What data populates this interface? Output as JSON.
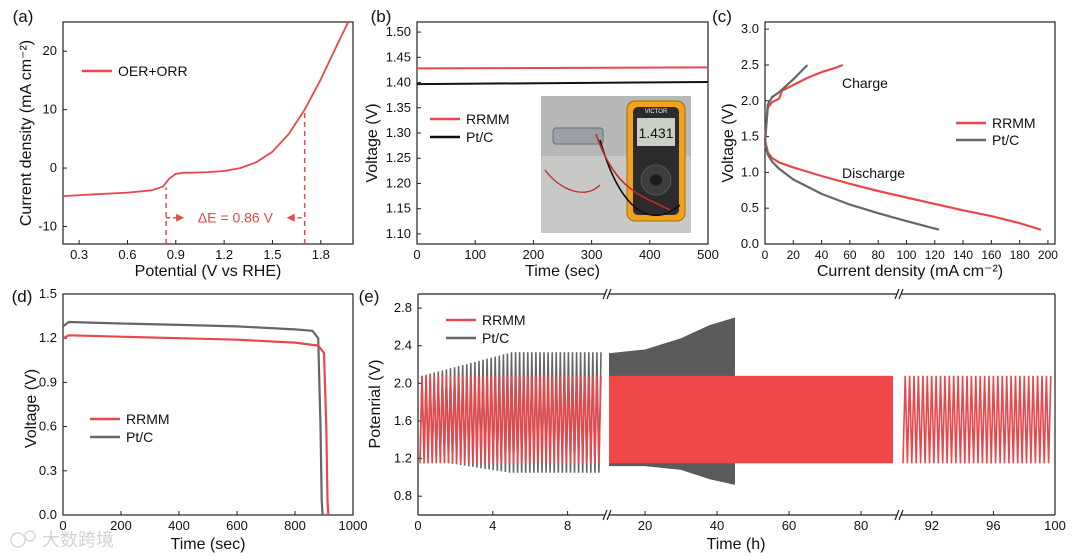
{
  "figure": {
    "watermark": "大数跨境"
  },
  "colors": {
    "red": "#e8474b",
    "black": "#111111",
    "gray": "#666666",
    "redfill": "#f04848",
    "grayfill": "#5a5a5a"
  },
  "chart_data": [
    {
      "id": "a",
      "panel_label": "(a)",
      "type": "line",
      "xlabel": "Potential (V vs RHE)",
      "ylabel": "Current density (mA cm⁻²)",
      "xlim": [
        0.2,
        2.0
      ],
      "ylim": [
        -13,
        25
      ],
      "xticks": [
        0.3,
        0.6,
        0.9,
        1.2,
        1.5,
        1.8
      ],
      "yticks": [
        -10,
        0,
        10,
        20
      ],
      "xtick_labels": [
        "0.3",
        "0.6",
        "0.9",
        "1.2",
        "1.5",
        "1.8"
      ],
      "ytick_labels": [
        "-10",
        "0",
        "10",
        "20"
      ],
      "legend": [
        "OER+ORR"
      ],
      "series": [
        {
          "name": "OER+ORR",
          "color": "#e8474b",
          "x": [
            0.2,
            0.4,
            0.6,
            0.75,
            0.82,
            0.86,
            0.9,
            0.95,
            1.0,
            1.1,
            1.2,
            1.3,
            1.4,
            1.5,
            1.6,
            1.7,
            1.8,
            1.9,
            1.97
          ],
          "y": [
            -4.8,
            -4.5,
            -4.2,
            -3.8,
            -3.2,
            -1.8,
            -1.0,
            -0.8,
            -0.8,
            -0.7,
            -0.5,
            0.0,
            1.0,
            2.8,
            5.8,
            10.0,
            15.2,
            21.0,
            25.0
          ]
        }
      ],
      "annotation": {
        "text": "ΔE = 0.86 V",
        "x1": 0.84,
        "x2": 1.7,
        "y": -8.5
      }
    },
    {
      "id": "b",
      "panel_label": "(b)",
      "type": "line",
      "xlabel": "Time (sec)",
      "ylabel": "Voltage (V)",
      "xlim": [
        0,
        500
      ],
      "ylim": [
        1.08,
        1.52
      ],
      "xticks": [
        0,
        100,
        200,
        300,
        400,
        500
      ],
      "yticks": [
        1.1,
        1.15,
        1.2,
        1.25,
        1.3,
        1.35,
        1.4,
        1.45,
        1.5
      ],
      "xtick_labels": [
        "0",
        "100",
        "200",
        "300",
        "400",
        "500"
      ],
      "ytick_labels": [
        "1.10",
        "1.15",
        "1.20",
        "1.25",
        "1.30",
        "1.35",
        "1.40",
        "1.45",
        "1.50"
      ],
      "legend": [
        "RRMM",
        "Pt/C"
      ],
      "series": [
        {
          "name": "RRMM",
          "color": "#e8474b",
          "x": [
            0,
            500
          ],
          "y": [
            1.428,
            1.43
          ]
        },
        {
          "name": "Pt/C",
          "color": "#111111",
          "x": [
            0,
            500
          ],
          "y": [
            1.397,
            1.401
          ]
        }
      ],
      "inset": {
        "meter_reading": "1.431",
        "brand": "VICTOR"
      }
    },
    {
      "id": "c",
      "panel_label": "(c)",
      "type": "line",
      "xlabel": "Current density (mA cm⁻²)",
      "ylabel": "Voltage (V)",
      "xlim": [
        0,
        205
      ],
      "ylim": [
        0.0,
        3.1
      ],
      "xticks": [
        0,
        20,
        40,
        60,
        80,
        100,
        120,
        140,
        160,
        180,
        200
      ],
      "yticks": [
        0.0,
        0.5,
        1.0,
        1.5,
        2.0,
        2.5,
        3.0
      ],
      "xtick_labels": [
        "0",
        "20",
        "40",
        "60",
        "80",
        "100",
        "120",
        "140",
        "160",
        "180",
        "200"
      ],
      "ytick_labels": [
        "0.0",
        "0.5",
        "1.0",
        "1.5",
        "2.0",
        "2.5",
        "3.0"
      ],
      "legend": [
        "RRMM",
        "Pt/C"
      ],
      "text_labels": [
        "Charge",
        "Discharge"
      ],
      "series": [
        {
          "name": "RRMM discharge",
          "color": "#e8474b",
          "x": [
            0,
            2,
            5,
            10,
            20,
            40,
            60,
            80,
            100,
            120,
            140,
            160,
            180,
            195
          ],
          "y": [
            1.45,
            1.28,
            1.2,
            1.14,
            1.07,
            0.95,
            0.84,
            0.74,
            0.65,
            0.56,
            0.47,
            0.39,
            0.29,
            0.2
          ]
        },
        {
          "name": "RRMM charge",
          "color": "#e8474b",
          "x": [
            0,
            2,
            5,
            10,
            12,
            20,
            30,
            40,
            50,
            55
          ],
          "y": [
            1.45,
            1.9,
            1.98,
            2.03,
            2.14,
            2.22,
            2.32,
            2.4,
            2.46,
            2.5
          ]
        },
        {
          "name": "Pt/C discharge",
          "color": "#666666",
          "x": [
            0,
            2,
            5,
            10,
            20,
            40,
            60,
            80,
            100,
            123
          ],
          "y": [
            1.4,
            1.25,
            1.15,
            1.05,
            0.9,
            0.7,
            0.55,
            0.43,
            0.32,
            0.2
          ]
        },
        {
          "name": "Pt/C charge",
          "color": "#666666",
          "x": [
            0,
            2,
            5,
            10,
            20,
            25,
            30
          ],
          "y": [
            1.4,
            1.95,
            2.05,
            2.12,
            2.3,
            2.4,
            2.5
          ]
        }
      ]
    },
    {
      "id": "d",
      "panel_label": "(d)",
      "type": "line",
      "xlabel": "Time (sec)",
      "ylabel": "Voltage (V)",
      "xlim": [
        0,
        1000
      ],
      "ylim": [
        0.0,
        1.5
      ],
      "xticks": [
        0,
        200,
        400,
        600,
        800,
        1000
      ],
      "yticks": [
        0.0,
        0.3,
        0.6,
        0.9,
        1.2,
        1.5
      ],
      "xtick_labels": [
        "0",
        "200",
        "400",
        "600",
        "800",
        "1000"
      ],
      "ytick_labels": [
        "0.0",
        "0.3",
        "0.6",
        "0.9",
        "1.2",
        "1.5"
      ],
      "legend": [
        "RRMM",
        "Pt/C"
      ],
      "series": [
        {
          "name": "Pt/C",
          "color": "#666666",
          "x": [
            0,
            20,
            200,
            400,
            600,
            800,
            860,
            880,
            888,
            892,
            895
          ],
          "y": [
            1.28,
            1.31,
            1.3,
            1.29,
            1.28,
            1.26,
            1.25,
            1.2,
            0.6,
            0.1,
            0.0
          ]
        },
        {
          "name": "RRMM",
          "color": "#e8474b",
          "x": [
            0,
            20,
            200,
            400,
            600,
            800,
            880,
            900,
            908,
            912,
            915
          ],
          "y": [
            1.2,
            1.22,
            1.21,
            1.2,
            1.19,
            1.17,
            1.15,
            1.1,
            0.6,
            0.1,
            0.0
          ]
        }
      ]
    },
    {
      "id": "e",
      "panel_label": "(e)",
      "type": "line",
      "xlabel": "Time (h)",
      "ylabel": "Potenrial (V)",
      "ylim": [
        0.6,
        2.95
      ],
      "yticks": [
        0.8,
        1.2,
        1.6,
        2.0,
        2.4,
        2.8
      ],
      "ytick_labels": [
        "0.8",
        "1.2",
        "1.6",
        "2.0",
        "2.4",
        "2.8"
      ],
      "legend": [
        "RRMM",
        "Pt/C"
      ],
      "segments": [
        {
          "xlim": [
            0,
            10
          ],
          "xticks": [
            0,
            4,
            8
          ],
          "xtick_labels": [
            "0",
            "4",
            "8"
          ]
        },
        {
          "xlim": [
            10,
            90
          ],
          "xticks": [
            20,
            40,
            60,
            80
          ],
          "xtick_labels": [
            "20",
            "40",
            "60",
            "80"
          ]
        },
        {
          "xlim": [
            90,
            100
          ],
          "xticks": [
            92,
            96,
            100
          ],
          "xtick_labels": [
            "92",
            "96",
            "100"
          ]
        }
      ],
      "series": [
        {
          "name": "RRMM",
          "color": "#e8474b",
          "charge_V": 2.08,
          "discharge_V": 1.15
        },
        {
          "name": "Pt/C",
          "color": "#666666",
          "charge_V_start": 2.08,
          "charge_V_max": 2.7,
          "discharge_V_start": 1.2,
          "discharge_V_min": 0.92
        }
      ]
    }
  ]
}
